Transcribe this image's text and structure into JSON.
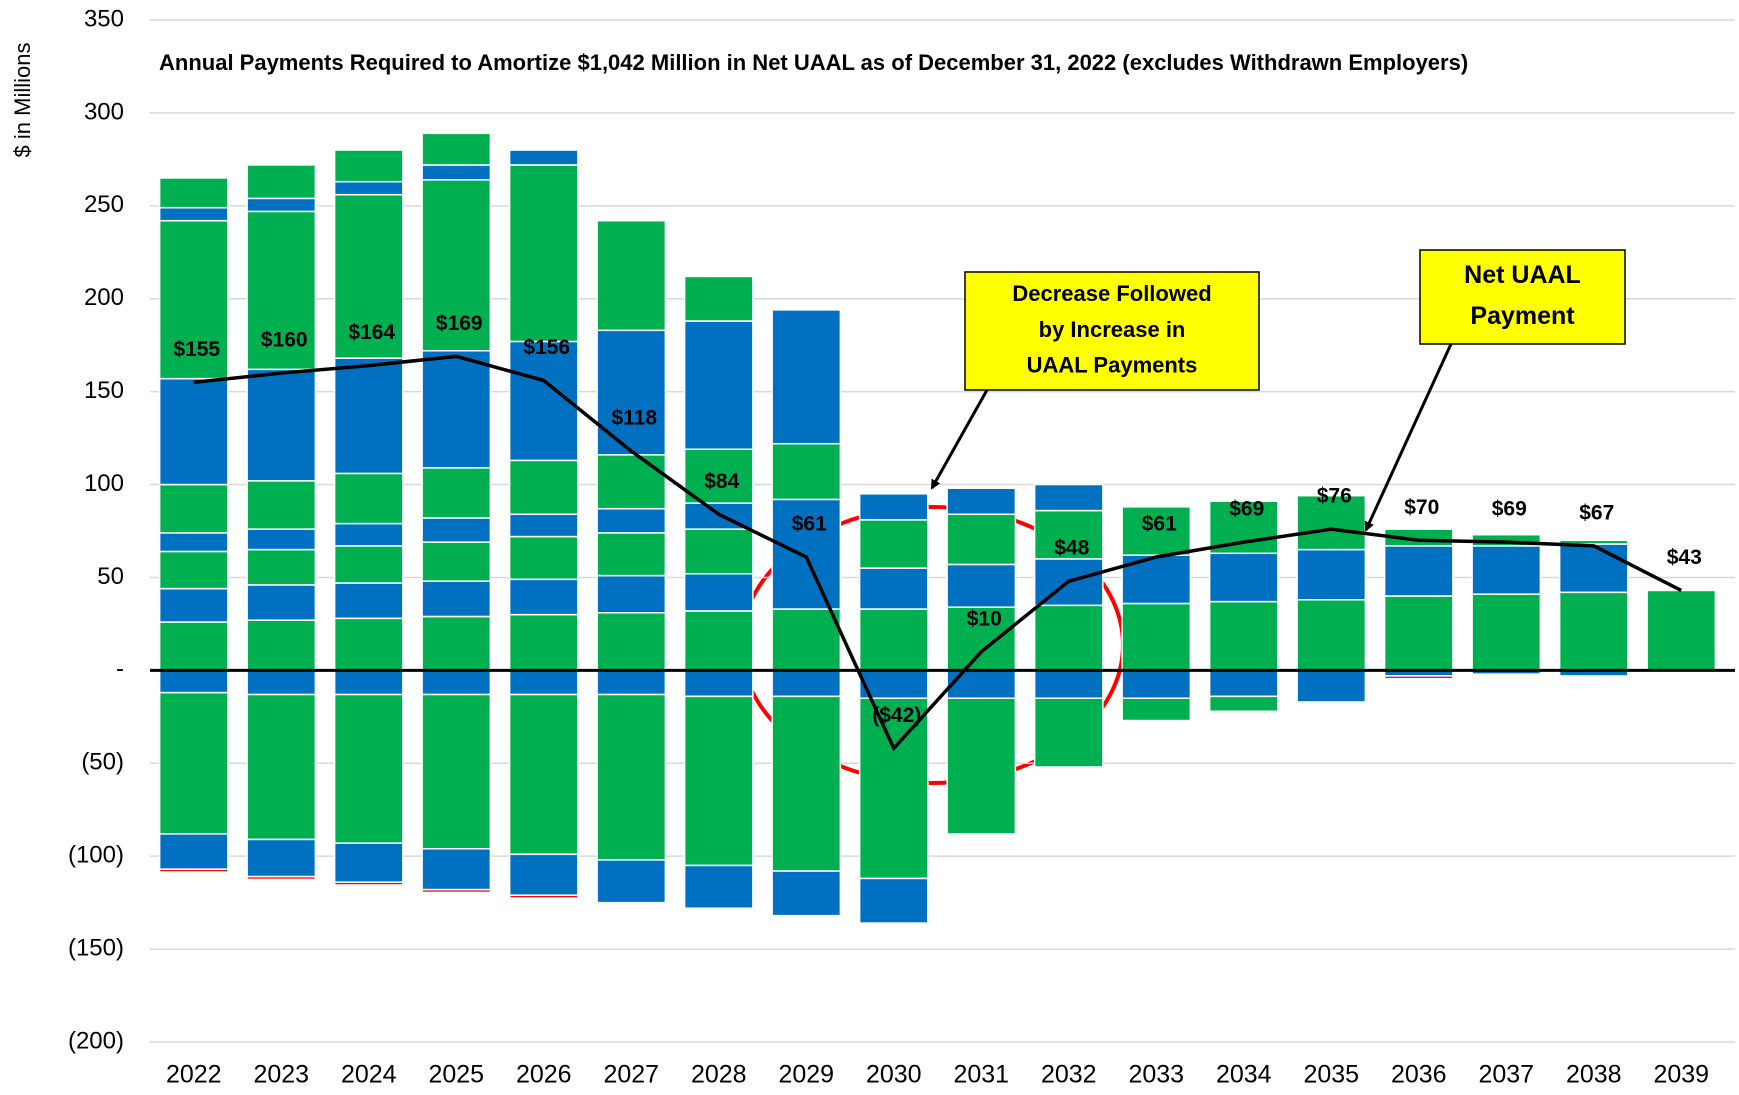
{
  "chart_data": {
    "type": "bar",
    "title": "Annual Payments Required to Amortize $1,042 Million in Net UAAL as of December 31, 2022 (excludes Withdrawn Employers)",
    "y_label": "$ in Millions",
    "categories": [
      "2022",
      "2023",
      "2024",
      "2025",
      "2026",
      "2027",
      "2028",
      "2029",
      "2030",
      "2031",
      "2032",
      "2033",
      "2034",
      "2035",
      "2036",
      "2037",
      "2038",
      "2039"
    ],
    "ylim": [
      -200,
      350
    ],
    "yticks": [
      {
        "value": -200,
        "label": "(200)"
      },
      {
        "value": -150,
        "label": "(150)"
      },
      {
        "value": -100,
        "label": "(100)"
      },
      {
        "value": -50,
        "label": "(50)"
      },
      {
        "value": 0,
        "label": "-"
      },
      50,
      100,
      150,
      200,
      250,
      300,
      350
    ],
    "grid": true,
    "series": [
      {
        "color": "#00b050",
        "values": [
          26,
          27,
          28,
          29,
          30,
          31,
          32,
          33,
          33,
          34,
          35,
          36,
          37,
          38,
          40,
          41,
          42,
          43
        ]
      },
      {
        "color": "#0070c0",
        "values": [
          18,
          19,
          19,
          19,
          19,
          20,
          20,
          59,
          22,
          23,
          25,
          26,
          26,
          27,
          27,
          26,
          26,
          0
        ]
      },
      {
        "color": "#00b050",
        "values": [
          20,
          19,
          20,
          21,
          23,
          23,
          24,
          30,
          26,
          27,
          26,
          26,
          28,
          29,
          9,
          6,
          2,
          0
        ]
      },
      {
        "color": "#0070c0",
        "values": [
          10,
          11,
          12,
          13,
          12,
          13,
          14,
          72,
          14,
          14,
          14,
          0,
          0,
          0,
          0,
          0,
          0,
          0
        ]
      },
      {
        "color": "#00b050",
        "values": [
          26,
          26,
          27,
          27,
          29,
          29,
          29,
          0,
          0,
          0,
          0,
          0,
          0,
          0,
          0,
          0,
          0,
          0
        ]
      },
      {
        "color": "#0070c0",
        "values": [
          57,
          60,
          62,
          63,
          64,
          67,
          69,
          0,
          0,
          0,
          0,
          0,
          0,
          0,
          0,
          0,
          0,
          0
        ]
      },
      {
        "color": "#00b050",
        "values": [
          85,
          85,
          88,
          92,
          95,
          59,
          24,
          0,
          0,
          0,
          0,
          0,
          0,
          0,
          0,
          0,
          0,
          0
        ]
      },
      {
        "color": "#0070c0",
        "values": [
          7,
          7,
          7,
          8,
          8,
          0,
          0,
          0,
          0,
          0,
          0,
          0,
          0,
          0,
          0,
          0,
          0,
          0
        ]
      },
      {
        "color": "#00b050",
        "values": [
          16,
          18,
          17,
          17,
          0,
          0,
          0,
          0,
          0,
          0,
          0,
          0,
          0,
          0,
          0,
          0,
          0,
          0
        ]
      },
      {
        "color": "#0070c0",
        "values": [
          -12,
          -13,
          -13,
          -13,
          -13,
          -13,
          -14,
          -14,
          -15,
          -15,
          -15,
          -15,
          -14,
          -17,
          -3,
          -2,
          -3,
          0
        ]
      },
      {
        "color": "#00b050",
        "values": [
          -76,
          -78,
          -80,
          -83,
          -86,
          -89,
          -91,
          -94,
          -97,
          -73,
          -37,
          -12,
          -8,
          0,
          0,
          0,
          0,
          0
        ]
      },
      {
        "color": "#0070c0",
        "values": [
          -19,
          -20,
          -21,
          -22,
          -22,
          -23,
          -23,
          -24,
          -24,
          0,
          0,
          0,
          0,
          0,
          0,
          0,
          0,
          0
        ]
      },
      {
        "color": "#ff0000",
        "values": [
          -1.5,
          -1.5,
          -1.5,
          -1.5,
          -1.5,
          0,
          0,
          0,
          0,
          0,
          0,
          0,
          0,
          0,
          -1.5,
          0,
          0,
          0
        ]
      },
      {
        "type": "line",
        "color": "#000000",
        "values": [
          155,
          160,
          164,
          169,
          156,
          118,
          84,
          61,
          -42,
          10,
          48,
          61,
          69,
          76,
          70,
          69,
          67,
          43
        ],
        "value_labels": [
          "$155",
          "$160",
          "$164",
          "$169",
          "$156",
          "$118",
          "$84",
          "$61",
          "($42)",
          "$10",
          "$48",
          "$61",
          "$69",
          "$76",
          "$70",
          "$69",
          "$67",
          "$43"
        ]
      }
    ],
    "annotations": [
      {
        "text": [
          "Decrease Followed",
          "by Increase in",
          "UAAL Payments"
        ],
        "color": "#ffff00"
      },
      {
        "text": [
          "Net UAAL",
          "Payment"
        ],
        "color": "#ffff00"
      }
    ]
  }
}
